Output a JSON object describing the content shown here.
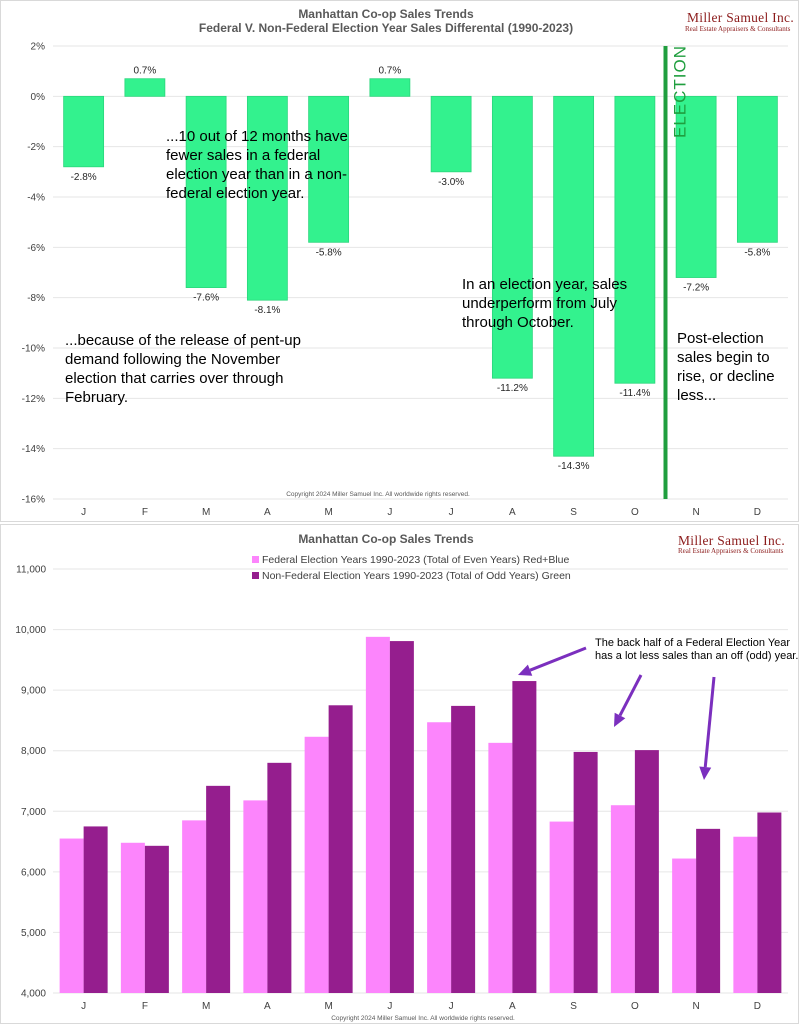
{
  "chart_data": [
    {
      "type": "bar",
      "title": "Manhattan Co-op Sales Trends",
      "subtitle": "Federal V. Non-Federal Election Year Sales Differental (1990-2023)",
      "categories": [
        "J",
        "F",
        "M",
        "A",
        "M",
        "J",
        "J",
        "A",
        "S",
        "O",
        "N",
        "D"
      ],
      "values": [
        -2.8,
        0.7,
        -7.6,
        -8.1,
        -5.8,
        0.7,
        -3.0,
        -11.2,
        -14.3,
        -11.4,
        -7.2,
        -5.8
      ],
      "value_labels": [
        "-2.8%",
        "0.7%",
        "-7.6%",
        "-8.1%",
        "-5.8%",
        "0.7%",
        "-3.0%",
        "-11.2%",
        "-14.3%",
        "-11.4%",
        "-7.2%",
        "-5.8%"
      ],
      "ylim": [
        -16,
        2
      ],
      "yticks": [
        2,
        0,
        -2,
        -4,
        -6,
        -8,
        -10,
        -12,
        -14,
        -16
      ],
      "ytick_labels": [
        "2%",
        "0%",
        "-2%",
        "-4%",
        "-6%",
        "-8%",
        "-10%",
        "-12%",
        "-14%",
        "-16%"
      ],
      "bar_color": "#33f28e",
      "bar_edge_color": "#2bd67c",
      "election_line_color": "#1f9e3e",
      "election_after_category_index": 9,
      "election_label": "ELECTION",
      "annotations": {
        "months_note": [
          "...10 out of 12 months have",
          "fewer sales in a federal",
          "election year than in a non-",
          "federal election year."
        ],
        "pentup_note": [
          "...because of the release of pent-up",
          "demand following the November",
          "election that carries over through",
          "February."
        ],
        "july_note": [
          "In an election year, sales",
          "underperform from July",
          "through October."
        ],
        "post_note": [
          "Post-election",
          "sales begin to",
          "rise, or decline",
          "less..."
        ]
      },
      "copyright": "Copyright 2024 Miller Samuel Inc. All worldwide rights reserved.",
      "logo": {
        "name": "Miller Samuel Inc.",
        "tagline": "Real Estate Appraisers & Consultants"
      },
      "xlabel": "",
      "ylabel": ""
    },
    {
      "type": "bar",
      "title": "Manhattan Co-op Sales Trends",
      "categories": [
        "J",
        "F",
        "M",
        "A",
        "M",
        "J",
        "J",
        "A",
        "S",
        "O",
        "N",
        "D"
      ],
      "series": [
        {
          "name": "Federal Election Years 1990-2023 (Total of Even Years) Red+Blue",
          "color": "#fc85fc",
          "values": [
            6550,
            6480,
            6850,
            7180,
            8230,
            9880,
            8470,
            8130,
            6830,
            7100,
            6220,
            6580
          ]
        },
        {
          "name": "Non-Federal Election Years 1990-2023 (Total of Odd Years) Green",
          "color": "#951e8e",
          "values": [
            6750,
            6430,
            7420,
            7800,
            8750,
            9810,
            8740,
            9150,
            7980,
            8010,
            6710,
            6980
          ]
        }
      ],
      "ylim": [
        4000,
        11000
      ],
      "yticks": [
        11000,
        10000,
        9000,
        8000,
        7000,
        6000,
        5000,
        4000
      ],
      "ytick_labels": [
        "11,000",
        "10,000",
        "9,000",
        "8,000",
        "7,000",
        "6,000",
        "5,000",
        "4,000"
      ],
      "annotation": [
        "The back half of a Federal Election Year",
        "has a lot less sales than an off (odd) year."
      ],
      "arrow_color": "#7b2fbe",
      "copyright": "Copyright 2024 Miller Samuel Inc. All worldwide rights reserved.",
      "logo": {
        "name": "Miller Samuel Inc.",
        "tagline": "Real Estate Appraisers & Consultants"
      },
      "xlabel": "",
      "ylabel": ""
    }
  ]
}
